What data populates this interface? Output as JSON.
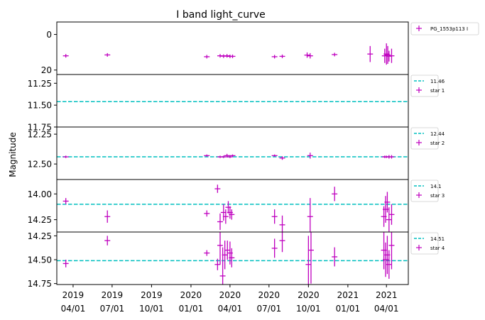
{
  "chart_data": {
    "type": "scatter",
    "title": "I band light_curve",
    "ylabel": "Magnitude",
    "x_ticks": [
      {
        "date": "2019-04-01",
        "line1": "2019",
        "line2": "04/01"
      },
      {
        "date": "2019-07-01",
        "line1": "2019",
        "line2": "07/01"
      },
      {
        "date": "2019-10-01",
        "line1": "2019",
        "line2": "10/01"
      },
      {
        "date": "2020-01-01",
        "line1": "2020",
        "line2": "01/01"
      },
      {
        "date": "2020-04-01",
        "line1": "2020",
        "line2": "04/01"
      },
      {
        "date": "2020-07-01",
        "line1": "2020",
        "line2": "07/01"
      },
      {
        "date": "2020-10-01",
        "line1": "2020",
        "line2": "10/01"
      },
      {
        "date": "2021-01-01",
        "line1": "2021",
        "line2": "01/01"
      },
      {
        "date": "2021-04-01",
        "line1": "2021",
        "line2": "04/01"
      }
    ],
    "xlim": [
      "2019-02-22",
      "2021-05-22"
    ],
    "colors": {
      "points": "#bf00bf",
      "reference": "#00bfbf"
    },
    "panels": [
      {
        "name": "PG_1553p113 I",
        "inverted": true,
        "ylim": [
          22.5,
          -7
        ],
        "yticks": [
          {
            "value": 0,
            "label": "0"
          },
          {
            "value": 20,
            "label": "20"
          }
        ],
        "reference": null,
        "points": [
          {
            "date": "2019-03-15",
            "y": 12,
            "err": 1
          },
          {
            "date": "2019-06-20",
            "y": 11.5,
            "err": 1
          },
          {
            "date": "2020-02-07",
            "y": 12.5,
            "err": 1
          },
          {
            "date": "2020-03-09",
            "y": 12,
            "err": 1
          },
          {
            "date": "2020-03-17",
            "y": 12.2,
            "err": 1
          },
          {
            "date": "2020-03-25",
            "y": 12,
            "err": 1
          },
          {
            "date": "2020-04-01",
            "y": 12.3,
            "err": 1
          },
          {
            "date": "2020-04-07",
            "y": 12.3,
            "err": 1
          },
          {
            "date": "2020-07-14",
            "y": 12.5,
            "err": 1
          },
          {
            "date": "2020-08-01",
            "y": 12.3,
            "err": 1
          },
          {
            "date": "2020-09-28",
            "y": 11.6,
            "err": 1.5
          },
          {
            "date": "2020-10-05",
            "y": 12,
            "err": 1.5
          },
          {
            "date": "2020-12-01",
            "y": 11.3,
            "err": 1
          },
          {
            "date": "2021-02-22",
            "y": 11,
            "err": 4.5
          },
          {
            "date": "2021-03-28",
            "y": 12,
            "err": 4
          },
          {
            "date": "2021-04-01",
            "y": 11,
            "err": 6
          },
          {
            "date": "2021-04-04",
            "y": 11.5,
            "err": 5
          },
          {
            "date": "2021-04-07",
            "y": 12.2,
            "err": 3
          },
          {
            "date": "2021-04-13",
            "y": 12,
            "err": 4
          }
        ]
      },
      {
        "name": "star 1",
        "inverted": true,
        "ylim": [
          11.75,
          11.15
        ],
        "yticks": [
          {
            "value": 11.25,
            "label": "11.25"
          },
          {
            "value": 11.5,
            "label": "11.50"
          },
          {
            "value": 11.75,
            "label": "11.75"
          }
        ],
        "reference": {
          "value": 11.46,
          "label": "11.46"
        },
        "points": []
      },
      {
        "name": "star 2",
        "inverted": true,
        "ylim": [
          12.63,
          12.19
        ],
        "yticks": [
          {
            "value": 12.25,
            "label": "12.25"
          },
          {
            "value": 12.5,
            "label": "12.50"
          }
        ],
        "reference": {
          "value": 12.44,
          "label": "12.44"
        },
        "points": [
          {
            "date": "2019-03-15",
            "y": 12.44,
            "err": 0.01
          },
          {
            "date": "2020-02-07",
            "y": 12.43,
            "err": 0.01
          },
          {
            "date": "2020-03-09",
            "y": 12.44,
            "err": 0.01
          },
          {
            "date": "2020-03-17",
            "y": 12.44,
            "err": 0.01
          },
          {
            "date": "2020-03-25",
            "y": 12.43,
            "err": 0.015
          },
          {
            "date": "2020-04-01",
            "y": 12.44,
            "err": 0.01
          },
          {
            "date": "2020-04-07",
            "y": 12.43,
            "err": 0.01
          },
          {
            "date": "2020-07-14",
            "y": 12.43,
            "err": 0.01
          },
          {
            "date": "2020-08-01",
            "y": 12.45,
            "err": 0.015
          },
          {
            "date": "2020-10-05",
            "y": 12.43,
            "err": 0.025
          },
          {
            "date": "2021-03-28",
            "y": 12.44,
            "err": 0.01
          },
          {
            "date": "2021-04-01",
            "y": 12.44,
            "err": 0.01
          },
          {
            "date": "2021-04-07",
            "y": 12.44,
            "err": 0.015
          },
          {
            "date": "2021-04-13",
            "y": 12.44,
            "err": 0.015
          }
        ]
      },
      {
        "name": "star 3",
        "inverted": true,
        "ylim": [
          14.37,
          13.86
        ],
        "yticks": [
          {
            "value": 14.0,
            "label": "14.00"
          },
          {
            "value": 14.25,
            "label": "14.25"
          }
        ],
        "reference": {
          "value": 14.1,
          "label": "14.1"
        },
        "points": [
          {
            "date": "2019-03-15",
            "y": 14.07,
            "err": 0.03
          },
          {
            "date": "2019-06-20",
            "y": 14.22,
            "err": 0.06
          },
          {
            "date": "2020-02-07",
            "y": 14.19,
            "err": 0.03
          },
          {
            "date": "2020-03-03",
            "y": 13.95,
            "err": 0.04
          },
          {
            "date": "2020-03-09",
            "y": 14.27,
            "err": 0.08
          },
          {
            "date": "2020-03-17",
            "y": 14.18,
            "err": 0.08
          },
          {
            "date": "2020-03-22",
            "y": 14.22,
            "err": 0.07
          },
          {
            "date": "2020-03-28",
            "y": 14.13,
            "err": 0.06
          },
          {
            "date": "2020-04-01",
            "y": 14.18,
            "err": 0.06
          },
          {
            "date": "2020-04-05",
            "y": 14.2,
            "err": 0.05
          },
          {
            "date": "2020-07-14",
            "y": 14.22,
            "err": 0.07
          },
          {
            "date": "2020-08-01",
            "y": 14.3,
            "err": 0.09
          },
          {
            "date": "2020-10-05",
            "y": 14.22,
            "err": 0.18
          },
          {
            "date": "2020-12-01",
            "y": 14.0,
            "err": 0.07
          },
          {
            "date": "2021-03-26",
            "y": 14.22,
            "err": 0.1
          },
          {
            "date": "2021-03-30",
            "y": 14.15,
            "err": 0.13
          },
          {
            "date": "2021-04-03",
            "y": 14.08,
            "err": 0.1
          },
          {
            "date": "2021-04-07",
            "y": 14.25,
            "err": 0.12
          },
          {
            "date": "2021-04-13",
            "y": 14.2,
            "err": 0.1
          }
        ]
      },
      {
        "name": "star 4",
        "inverted": true,
        "ylim": [
          14.76,
          14.21
        ],
        "yticks": [
          {
            "value": 14.25,
            "label": "14.25"
          },
          {
            "value": 14.5,
            "label": "14.50"
          },
          {
            "value": 14.75,
            "label": "14.75"
          }
        ],
        "reference": {
          "value": 14.51,
          "label": "14.51"
        },
        "points": [
          {
            "date": "2019-03-15",
            "y": 14.54,
            "err": 0.04
          },
          {
            "date": "2019-06-20",
            "y": 14.3,
            "err": 0.05
          },
          {
            "date": "2020-02-07",
            "y": 14.43,
            "err": 0.03
          },
          {
            "date": "2020-03-03",
            "y": 14.55,
            "err": 0.06
          },
          {
            "date": "2020-03-09",
            "y": 14.35,
            "err": 0.2
          },
          {
            "date": "2020-03-15",
            "y": 14.67,
            "err": 0.3
          },
          {
            "date": "2020-03-20",
            "y": 14.45,
            "err": 0.15
          },
          {
            "date": "2020-03-26",
            "y": 14.4,
            "err": 0.1
          },
          {
            "date": "2020-04-01",
            "y": 14.43,
            "err": 0.12
          },
          {
            "date": "2020-04-05",
            "y": 14.48,
            "err": 0.1
          },
          {
            "date": "2020-07-14",
            "y": 14.38,
            "err": 0.1
          },
          {
            "date": "2020-08-01",
            "y": 14.3,
            "err": 0.12
          },
          {
            "date": "2020-10-01",
            "y": 14.55,
            "err": 0.3
          },
          {
            "date": "2020-10-07",
            "y": 14.4,
            "err": 0.35
          },
          {
            "date": "2020-12-01",
            "y": 14.47,
            "err": 0.1
          },
          {
            "date": "2021-03-26",
            "y": 14.4,
            "err": 0.2
          },
          {
            "date": "2021-03-30",
            "y": 14.5,
            "err": 0.18
          },
          {
            "date": "2021-04-03",
            "y": 14.45,
            "err": 0.2
          },
          {
            "date": "2021-04-07",
            "y": 14.55,
            "err": 0.15
          },
          {
            "date": "2021-04-13",
            "y": 14.35,
            "err": 0.25
          }
        ]
      }
    ]
  }
}
